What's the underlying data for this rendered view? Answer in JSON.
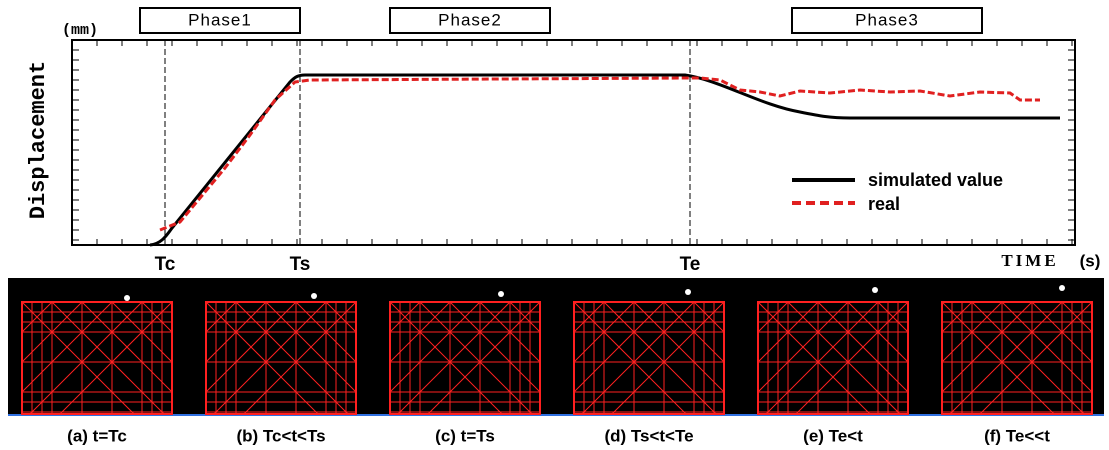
{
  "figure": {
    "phases": [
      "Phase1",
      "Phase2",
      "Phase3"
    ],
    "unit": "(mm)",
    "y_label": "Displacement",
    "x_label": "TIME",
    "x_unit": "(s)",
    "time_marks": [
      "Tc",
      "Ts",
      "Te"
    ],
    "legend": [
      "simulated value",
      "real"
    ],
    "captions": [
      "(a) t=Tc",
      "(b) Tc<t<Ts",
      "(c) t=Ts",
      "(d) Ts<t<Te",
      "(e) Te<t",
      "(f) Te<<t"
    ]
  }
}
